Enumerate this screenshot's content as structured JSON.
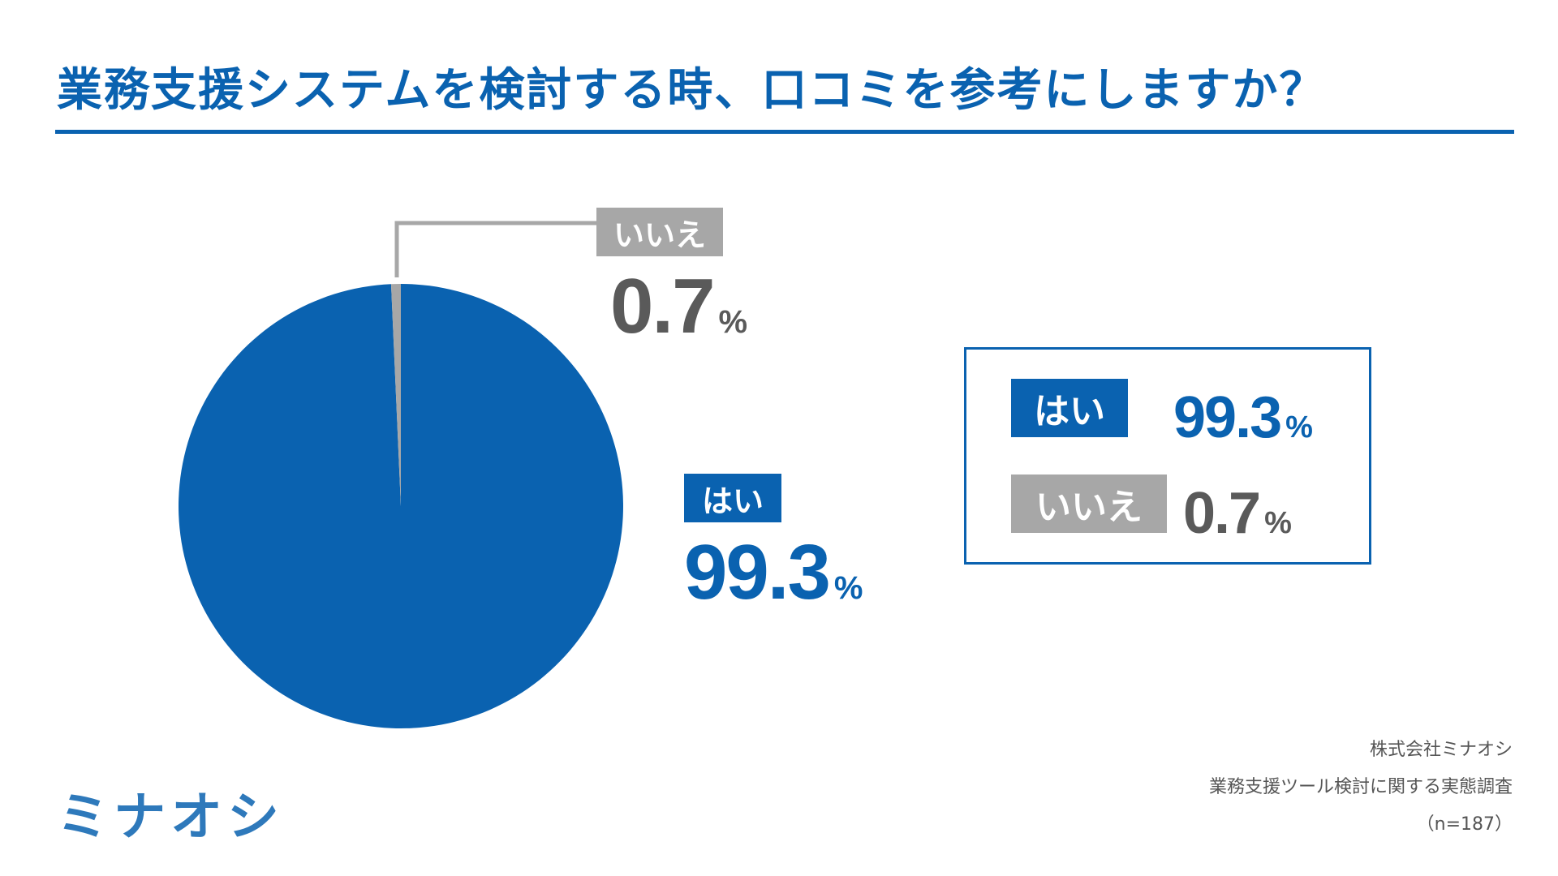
{
  "title": "業務支援システムを検討する時、口コミを参考にしますか？",
  "colors": {
    "primary": "#0a62b0",
    "secondary": "#a7a7a7",
    "text_gray": "#5a5a5a"
  },
  "chart_data": {
    "type": "pie",
    "slices": [
      {
        "label": "はい",
        "value": 99.3,
        "display": "99.3",
        "unit": "%",
        "color": "#0a62b0"
      },
      {
        "label": "いいえ",
        "value": 0.7,
        "display": "0.7",
        "unit": "%",
        "color": "#a7a7a7"
      }
    ],
    "start": "12 o'clock",
    "direction": "clockwise"
  },
  "callouts": {
    "yes": {
      "label": "はい",
      "value": "99.3",
      "unit": "%"
    },
    "no": {
      "label": "いいえ",
      "value": "0.7",
      "unit": "%"
    }
  },
  "legend": {
    "yes": {
      "label": "はい",
      "value": "99.3",
      "unit": "%"
    },
    "no": {
      "label": "いいえ",
      "value": "0.7",
      "unit": "%"
    }
  },
  "source": {
    "company": "株式会社ミナオシ",
    "survey": "業務支援ツール検討に関する実態調査",
    "sample": "（n=187）"
  },
  "logo_text": "ミナオシ"
}
